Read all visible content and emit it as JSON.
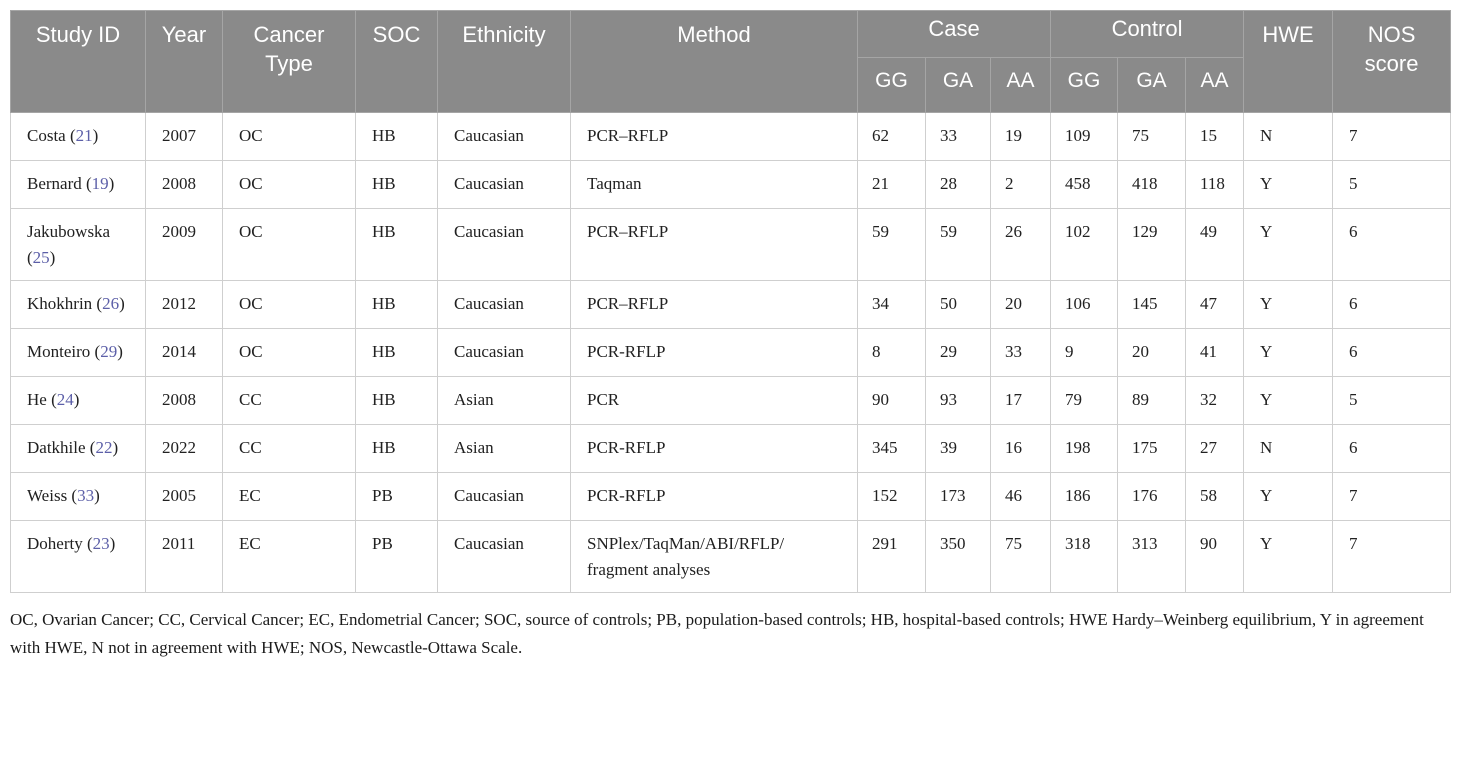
{
  "colors": {
    "header_bg": "#8a8a8a",
    "header_text": "#ffffff",
    "body_border": "#cfcfcf",
    "reference_link": "#5c5fa8"
  },
  "table": {
    "headers": {
      "study_id": "Study ID",
      "year": "Year",
      "cancer_type": "Cancer Type",
      "soc": "SOC",
      "ethnicity": "Ethnicity",
      "method": "Method",
      "case": "Case",
      "control": "Control",
      "hwe": "HWE",
      "nos": "NOS score",
      "genotypes": [
        "GG",
        "GA",
        "AA"
      ]
    },
    "rows": [
      {
        "study": "Costa",
        "ref": "21",
        "year": "2007",
        "cancer_type": "OC",
        "soc": "HB",
        "ethnicity": "Caucasian",
        "method": "PCR–RFLP",
        "case": {
          "gg": "62",
          "ga": "33",
          "aa": "19"
        },
        "control": {
          "gg": "109",
          "ga": "75",
          "aa": "15"
        },
        "hwe": "N",
        "nos": "7"
      },
      {
        "study": "Bernard",
        "ref": "19",
        "year": "2008",
        "cancer_type": "OC",
        "soc": "HB",
        "ethnicity": "Caucasian",
        "method": "Taqman",
        "case": {
          "gg": "21",
          "ga": "28",
          "aa": "2"
        },
        "control": {
          "gg": "458",
          "ga": "418",
          "aa": "118"
        },
        "hwe": "Y",
        "nos": "5"
      },
      {
        "study": "Jakubowska",
        "ref": "25",
        "year": "2009",
        "cancer_type": "OC",
        "soc": "HB",
        "ethnicity": "Caucasian",
        "method": "PCR–RFLP",
        "case": {
          "gg": "59",
          "ga": "59",
          "aa": "26"
        },
        "control": {
          "gg": "102",
          "ga": "129",
          "aa": "49"
        },
        "hwe": "Y",
        "nos": "6"
      },
      {
        "study": "Khokhrin",
        "ref": "26",
        "year": "2012",
        "cancer_type": "OC",
        "soc": "HB",
        "ethnicity": "Caucasian",
        "method": "PCR–RFLP",
        "case": {
          "gg": "34",
          "ga": "50",
          "aa": "20"
        },
        "control": {
          "gg": "106",
          "ga": "145",
          "aa": "47"
        },
        "hwe": "Y",
        "nos": "6"
      },
      {
        "study": "Monteiro",
        "ref": "29",
        "year": "2014",
        "cancer_type": "OC",
        "soc": "HB",
        "ethnicity": "Caucasian",
        "method": "PCR-RFLP",
        "case": {
          "gg": "8",
          "ga": "29",
          "aa": "33"
        },
        "control": {
          "gg": "9",
          "ga": "20",
          "aa": "41"
        },
        "hwe": "Y",
        "nos": "6"
      },
      {
        "study": "He",
        "ref": "24",
        "year": "2008",
        "cancer_type": "CC",
        "soc": "HB",
        "ethnicity": "Asian",
        "method": "PCR",
        "case": {
          "gg": "90",
          "ga": "93",
          "aa": "17"
        },
        "control": {
          "gg": "79",
          "ga": "89",
          "aa": "32"
        },
        "hwe": "Y",
        "nos": "5"
      },
      {
        "study": "Datkhile",
        "ref": "22",
        "year": "2022",
        "cancer_type": "CC",
        "soc": "HB",
        "ethnicity": "Asian",
        "method": "PCR-RFLP",
        "case": {
          "gg": "345",
          "ga": "39",
          "aa": "16"
        },
        "control": {
          "gg": "198",
          "ga": "175",
          "aa": "27"
        },
        "hwe": "N",
        "nos": "6"
      },
      {
        "study": "Weiss",
        "ref": "33",
        "year": "2005",
        "cancer_type": "EC",
        "soc": "PB",
        "ethnicity": "Caucasian",
        "method": "PCR-RFLP",
        "case": {
          "gg": "152",
          "ga": "173",
          "aa": "46"
        },
        "control": {
          "gg": "186",
          "ga": "176",
          "aa": "58"
        },
        "hwe": "Y",
        "nos": "7"
      },
      {
        "study": "Doherty",
        "ref": "23",
        "year": "2011",
        "cancer_type": "EC",
        "soc": "PB",
        "ethnicity": "Caucasian",
        "method": "SNPlex/TaqMan/ABI/RFLP/ fragment analyses",
        "case": {
          "gg": "291",
          "ga": "350",
          "aa": "75"
        },
        "control": {
          "gg": "318",
          "ga": "313",
          "aa": "90"
        },
        "hwe": "Y",
        "nos": "7"
      }
    ]
  },
  "footnote": "OC, Ovarian Cancer; CC, Cervical Cancer; EC, Endometrial Cancer; SOC, source of controls; PB, population-based controls; HB, hospital-based controls; HWE Hardy–Weinberg equilibrium, Y in agreement with HWE, N not in agreement with HWE; NOS, Newcastle-Ottawa Scale."
}
